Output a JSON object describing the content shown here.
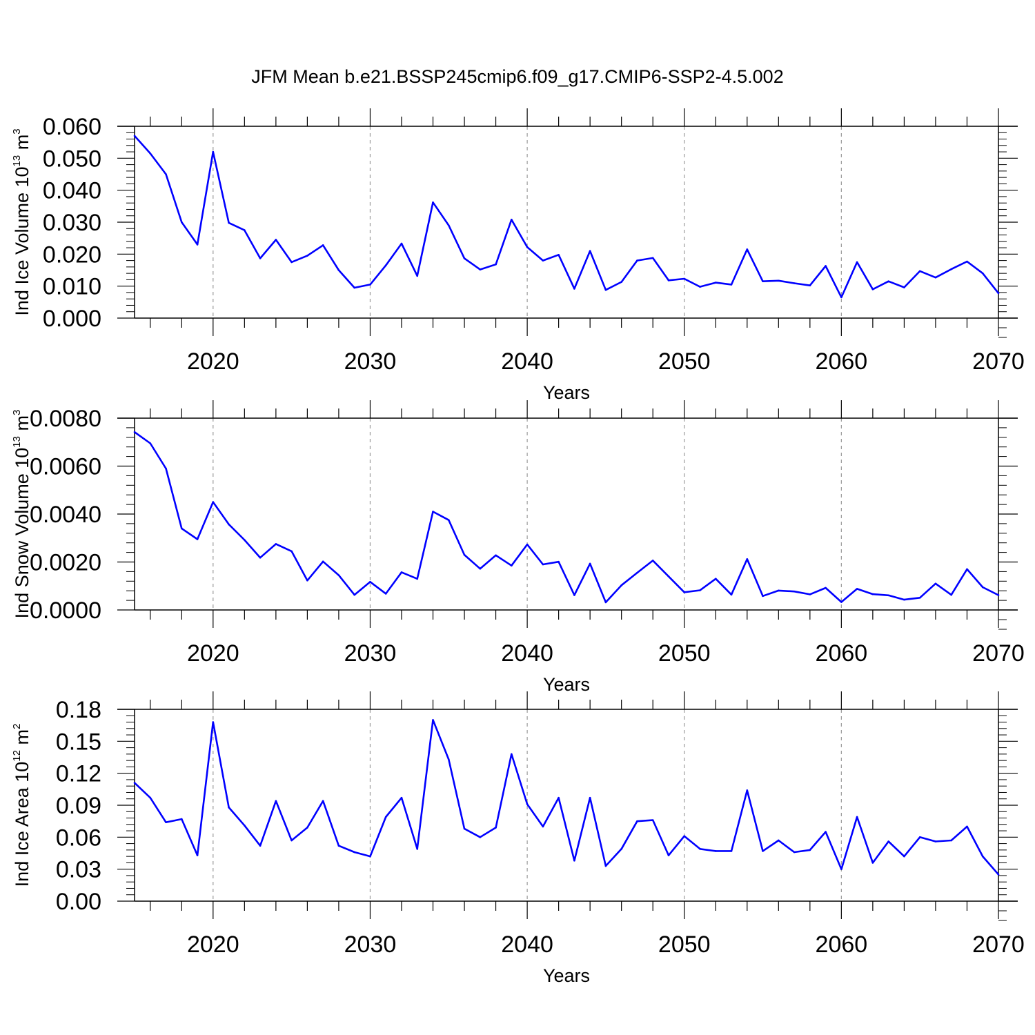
{
  "title": "JFM Mean b.e21.BSSP245cmip6.f09_g17.CMIP6-SSP2-4.5.002",
  "colors": {
    "series": "#0000ff",
    "axis": "#000000",
    "grid": "#999999"
  },
  "chart_data": [
    {
      "type": "line",
      "name": "ice-volume",
      "ylabel": {
        "text": "Ind Ice Volume 10",
        "exp": "13",
        "unit": " m",
        "unit_exp": "3"
      },
      "xlabel": "Years",
      "xlim": [
        2015,
        2070
      ],
      "ylim": [
        0,
        0.06
      ],
      "yticks": [
        0.0,
        0.01,
        0.02,
        0.03,
        0.04,
        0.05,
        0.06
      ],
      "ytick_labels": [
        "0.000",
        "0.010",
        "0.020",
        "0.030",
        "0.040",
        "0.050",
        "0.060"
      ],
      "xticks": [
        2020,
        2030,
        2040,
        2050,
        2060,
        2070
      ],
      "xtick_labels": [
        "2020",
        "2030",
        "2040",
        "2050",
        "2060",
        "2070"
      ],
      "x": [
        2015,
        2016,
        2017,
        2018,
        2019,
        2020,
        2021,
        2022,
        2023,
        2024,
        2025,
        2026,
        2027,
        2028,
        2029,
        2030,
        2031,
        2032,
        2033,
        2034,
        2035,
        2036,
        2037,
        2038,
        2039,
        2040,
        2041,
        2042,
        2043,
        2044,
        2045,
        2046,
        2047,
        2048,
        2049,
        2050,
        2051,
        2052,
        2053,
        2054,
        2055,
        2056,
        2057,
        2058,
        2059,
        2060,
        2061,
        2062,
        2063,
        2064,
        2065,
        2066,
        2067,
        2068,
        2069,
        2070
      ],
      "values": [
        0.057,
        0.0515,
        0.045,
        0.03,
        0.023,
        0.052,
        0.0298,
        0.0275,
        0.0187,
        0.0245,
        0.0175,
        0.0195,
        0.0228,
        0.015,
        0.0095,
        0.0105,
        0.0165,
        0.0233,
        0.0132,
        0.0362,
        0.029,
        0.0187,
        0.0152,
        0.0168,
        0.0308,
        0.0222,
        0.018,
        0.0198,
        0.0092,
        0.021,
        0.0088,
        0.0113,
        0.018,
        0.0188,
        0.0118,
        0.0123,
        0.0098,
        0.0111,
        0.0105,
        0.0215,
        0.0115,
        0.0117,
        0.0109,
        0.0102,
        0.0163,
        0.0065,
        0.0175,
        0.009,
        0.0115,
        0.0096,
        0.0147,
        0.0127,
        0.0153,
        0.0177,
        0.014,
        0.0078
      ]
    },
    {
      "type": "line",
      "name": "snow-volume",
      "ylabel": {
        "text": "Ind Snow Volume 10",
        "exp": "13",
        "unit": " m",
        "unit_exp": "3"
      },
      "xlabel": "Years",
      "xlim": [
        2015,
        2070
      ],
      "ylim": [
        0,
        0.008
      ],
      "yticks": [
        0.0,
        0.002,
        0.004,
        0.006,
        0.008
      ],
      "ytick_labels": [
        "0.0000",
        "0.0020",
        "0.0040",
        "0.0060",
        "0.0080"
      ],
      "xticks": [
        2020,
        2030,
        2040,
        2050,
        2060,
        2070
      ],
      "xtick_labels": [
        "2020",
        "2030",
        "2040",
        "2050",
        "2060",
        "2070"
      ],
      "x": [
        2015,
        2016,
        2017,
        2018,
        2019,
        2020,
        2021,
        2022,
        2023,
        2024,
        2025,
        2026,
        2027,
        2028,
        2029,
        2030,
        2031,
        2032,
        2033,
        2034,
        2035,
        2036,
        2037,
        2038,
        2039,
        2040,
        2041,
        2042,
        2043,
        2044,
        2045,
        2046,
        2047,
        2048,
        2049,
        2050,
        2051,
        2052,
        2053,
        2054,
        2055,
        2056,
        2057,
        2058,
        2059,
        2060,
        2061,
        2062,
        2063,
        2064,
        2065,
        2066,
        2067,
        2068,
        2069,
        2070
      ],
      "values": [
        0.00742,
        0.00695,
        0.0059,
        0.0034,
        0.00295,
        0.0045,
        0.00357,
        0.00292,
        0.00218,
        0.00275,
        0.00245,
        0.00123,
        0.00202,
        0.00145,
        0.00063,
        0.00117,
        0.00068,
        0.00157,
        0.0013,
        0.0041,
        0.00375,
        0.0023,
        0.00172,
        0.00228,
        0.00185,
        0.00273,
        0.0019,
        0.00201,
        0.00062,
        0.00193,
        0.00032,
        0.00103,
        0.00155,
        0.00206,
        0.0014,
        0.00074,
        0.00082,
        0.0013,
        0.00064,
        0.00212,
        0.00058,
        0.00081,
        0.00077,
        0.00065,
        0.00092,
        0.00033,
        0.00088,
        0.00066,
        0.00061,
        0.00043,
        0.00051,
        0.0011,
        0.00063,
        0.0017,
        0.00095,
        0.00062
      ]
    },
    {
      "type": "line",
      "name": "ice-area",
      "ylabel": {
        "text": "Ind Ice Area 10",
        "exp": "12",
        "unit": " m",
        "unit_exp": "2"
      },
      "xlabel": "Years",
      "xlim": [
        2015,
        2070
      ],
      "ylim": [
        0,
        0.18
      ],
      "yticks": [
        0.0,
        0.03,
        0.06,
        0.09,
        0.12,
        0.15,
        0.18
      ],
      "ytick_labels": [
        "0.00",
        "0.03",
        "0.06",
        "0.09",
        "0.12",
        "0.15",
        "0.18"
      ],
      "xticks": [
        2020,
        2030,
        2040,
        2050,
        2060,
        2070
      ],
      "xtick_labels": [
        "2020",
        "2030",
        "2040",
        "2050",
        "2060",
        "2070"
      ],
      "x": [
        2015,
        2016,
        2017,
        2018,
        2019,
        2020,
        2021,
        2022,
        2023,
        2024,
        2025,
        2026,
        2027,
        2028,
        2029,
        2030,
        2031,
        2032,
        2033,
        2034,
        2035,
        2036,
        2037,
        2038,
        2039,
        2040,
        2041,
        2042,
        2043,
        2044,
        2045,
        2046,
        2047,
        2048,
        2049,
        2050,
        2051,
        2052,
        2053,
        2054,
        2055,
        2056,
        2057,
        2058,
        2059,
        2060,
        2061,
        2062,
        2063,
        2064,
        2065,
        2066,
        2067,
        2068,
        2069,
        2070
      ],
      "values": [
        0.111,
        0.097,
        0.074,
        0.077,
        0.043,
        0.168,
        0.088,
        0.071,
        0.052,
        0.094,
        0.057,
        0.069,
        0.094,
        0.052,
        0.046,
        0.042,
        0.079,
        0.097,
        0.049,
        0.17,
        0.133,
        0.068,
        0.06,
        0.069,
        0.138,
        0.091,
        0.07,
        0.097,
        0.038,
        0.097,
        0.033,
        0.049,
        0.075,
        0.076,
        0.043,
        0.061,
        0.049,
        0.047,
        0.047,
        0.104,
        0.047,
        0.057,
        0.046,
        0.048,
        0.065,
        0.03,
        0.079,
        0.036,
        0.056,
        0.042,
        0.06,
        0.056,
        0.057,
        0.07,
        0.042,
        0.025
      ]
    }
  ]
}
